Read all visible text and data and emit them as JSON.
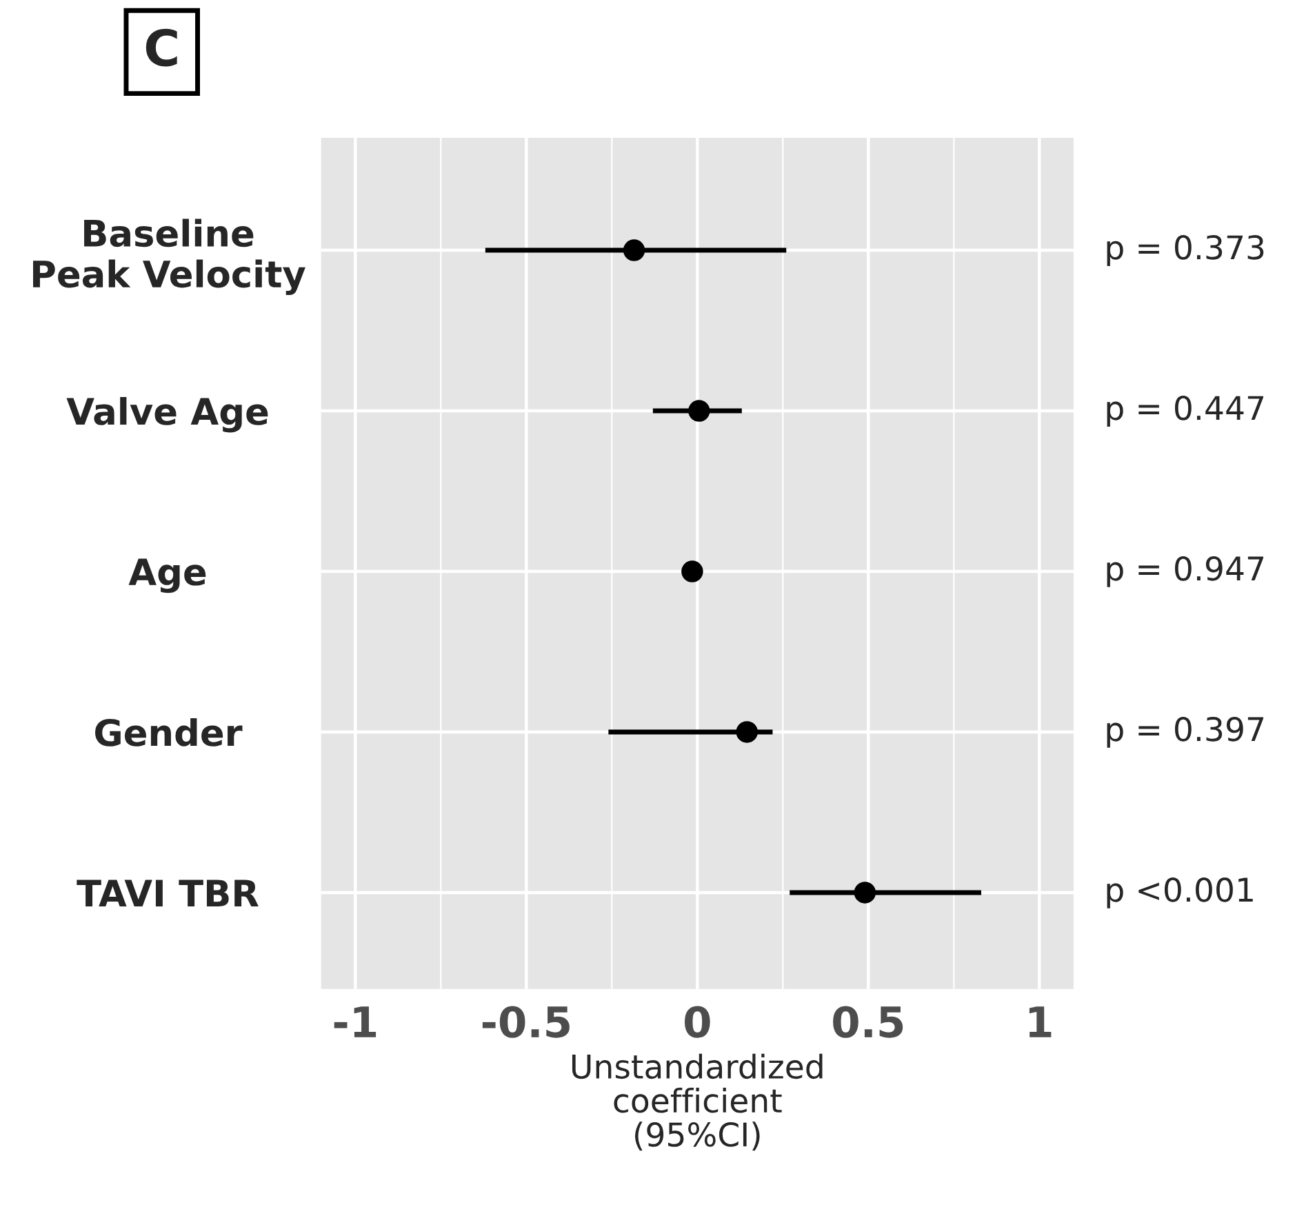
{
  "chart_data": {
    "type": "scatter",
    "orientation": "horizontal",
    "categories": [
      "Baseline\nPeak Velocity",
      "Valve Age",
      "Age",
      "Gender",
      "TAVI TBR"
    ],
    "values": [
      -0.185,
      0.005,
      -0.015,
      0.145,
      0.49
    ],
    "errors": [
      [
        -0.62,
        0.26
      ],
      [
        -0.13,
        0.13
      ],
      null,
      [
        -0.26,
        0.22
      ],
      [
        0.27,
        0.83
      ]
    ],
    "color": "#000000",
    "marker": "circle",
    "xlim": [
      -1.1,
      1.1
    ],
    "xticks": [
      -1,
      -0.5,
      0,
      0.5,
      1
    ],
    "xlabel": "Unstandardized\ncoefficient\n(95%CI)",
    "grid": true,
    "annotations": [
      "C",
      "p = 0.373",
      "p = 0.447",
      "p = 0.947",
      "p = 0.397",
      "p <0.001"
    ]
  }
}
